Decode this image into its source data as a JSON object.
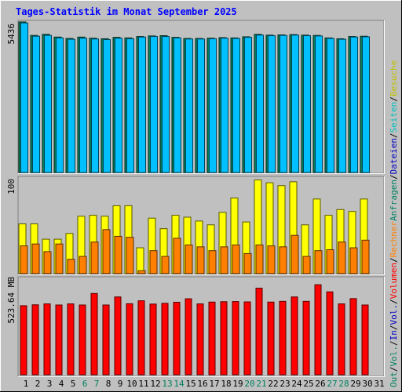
{
  "title": "Tages-Statistik im Monat September 2025",
  "side_labels": {
    "top": [
      {
        "text": "Anfragen",
        "color": "#008060"
      },
      {
        "text": "/",
        "color": "#000000"
      },
      {
        "text": "Dateien",
        "color": "#0000c0"
      },
      {
        "text": "/",
        "color": "#000000"
      },
      {
        "text": "Seiten",
        "color": "#00c0c0"
      },
      {
        "text": "/",
        "color": "#000000"
      },
      {
        "text": "Besuche",
        "color": "#c0c000"
      }
    ],
    "middle": [
      {
        "text": "/",
        "color": "#000000"
      },
      {
        "text": "Rechner",
        "color": "#ff8000"
      }
    ],
    "bottom": [
      {
        "text": "Out",
        "color": "#008060"
      },
      {
        "text": "/",
        "color": "#000000"
      },
      {
        "text": "Vol.",
        "color": "#008060"
      },
      {
        "text": "/",
        "color": "#000000"
      },
      {
        "text": "In",
        "color": "#0000c0"
      },
      {
        "text": "/",
        "color": "#000000"
      },
      {
        "text": "Vol.",
        "color": "#0000c0"
      },
      {
        "text": "/",
        "color": "#000000"
      },
      {
        "text": "Volumen",
        "color": "#ff0000"
      }
    ]
  },
  "chart_data": [
    {
      "type": "bar",
      "name": "requests-files",
      "max_label": "5436",
      "ymax": 5436,
      "categories": [
        "1",
        "2",
        "3",
        "4",
        "5",
        "6",
        "7",
        "8",
        "9",
        "10",
        "11",
        "12",
        "13",
        "14",
        "15",
        "16",
        "17",
        "18",
        "19",
        "20",
        "21",
        "22",
        "23",
        "24",
        "25",
        "26",
        "27",
        "28",
        "29",
        "30",
        "31"
      ],
      "weekend_days": [
        6,
        7,
        13,
        14,
        20,
        21,
        27,
        28
      ],
      "series": [
        {
          "name": "Anfragen",
          "color": "#00805c",
          "values": [
            5436,
            4950,
            4990,
            4890,
            4840,
            4890,
            4850,
            4830,
            4880,
            4860,
            4910,
            4930,
            4940,
            4880,
            4840,
            4840,
            4850,
            4870,
            4860,
            4900,
            4990,
            4960,
            4970,
            4980,
            4960,
            4950,
            4860,
            4830,
            4910,
            4920,
            null
          ]
        },
        {
          "name": "Dateien",
          "color": "#00c0ff",
          "values": [
            5400,
            4920,
            4950,
            4860,
            4810,
            4850,
            4820,
            4800,
            4850,
            4830,
            4890,
            4910,
            4910,
            4860,
            4820,
            4820,
            4830,
            4850,
            4840,
            4880,
            4960,
            4940,
            4950,
            4960,
            4940,
            4930,
            4840,
            4810,
            4890,
            4900,
            null
          ]
        }
      ]
    },
    {
      "type": "bar",
      "name": "visits-hosts",
      "max_label": "100",
      "ymax": 100,
      "categories": [
        "1",
        "2",
        "3",
        "4",
        "5",
        "6",
        "7",
        "8",
        "9",
        "10",
        "11",
        "12",
        "13",
        "14",
        "15",
        "16",
        "17",
        "18",
        "19",
        "20",
        "21",
        "22",
        "23",
        "24",
        "25",
        "26",
        "27",
        "28",
        "29",
        "30",
        "31"
      ],
      "series": [
        {
          "name": "Besuche",
          "color": "#ffff00",
          "values": [
            52,
            52,
            36,
            36,
            42,
            60,
            61,
            60,
            71,
            71,
            27,
            58,
            47,
            61,
            59,
            55,
            51,
            64,
            79,
            54,
            98,
            95,
            92,
            96,
            51,
            78,
            61,
            67,
            65,
            78,
            null
          ]
        },
        {
          "name": "Rechner",
          "color": "#ff8000",
          "values": [
            29,
            31,
            23,
            31,
            15,
            18,
            33,
            46,
            39,
            38,
            3,
            24,
            18,
            37,
            30,
            28,
            24,
            28,
            30,
            21,
            30,
            29,
            28,
            40,
            18,
            24,
            25,
            33,
            27,
            35,
            null
          ]
        }
      ]
    },
    {
      "type": "bar",
      "name": "volume",
      "max_label": "523.64 MB",
      "ymax": 523.64,
      "categories": [
        "1",
        "2",
        "3",
        "4",
        "5",
        "6",
        "7",
        "8",
        "9",
        "10",
        "11",
        "12",
        "13",
        "14",
        "15",
        "16",
        "17",
        "18",
        "19",
        "20",
        "21",
        "22",
        "23",
        "24",
        "25",
        "26",
        "27",
        "28",
        "29",
        "30",
        "31"
      ],
      "series": [
        {
          "name": "Volumen",
          "color": "#ff0000",
          "values": [
            378,
            383,
            388,
            382,
            388,
            382,
            445,
            382,
            426,
            389,
            405,
            387,
            391,
            397,
            416,
            388,
            398,
            400,
            401,
            399,
            474,
            398,
            402,
            426,
            402,
            493,
            454,
            388,
            417,
            382,
            null
          ]
        }
      ]
    }
  ]
}
